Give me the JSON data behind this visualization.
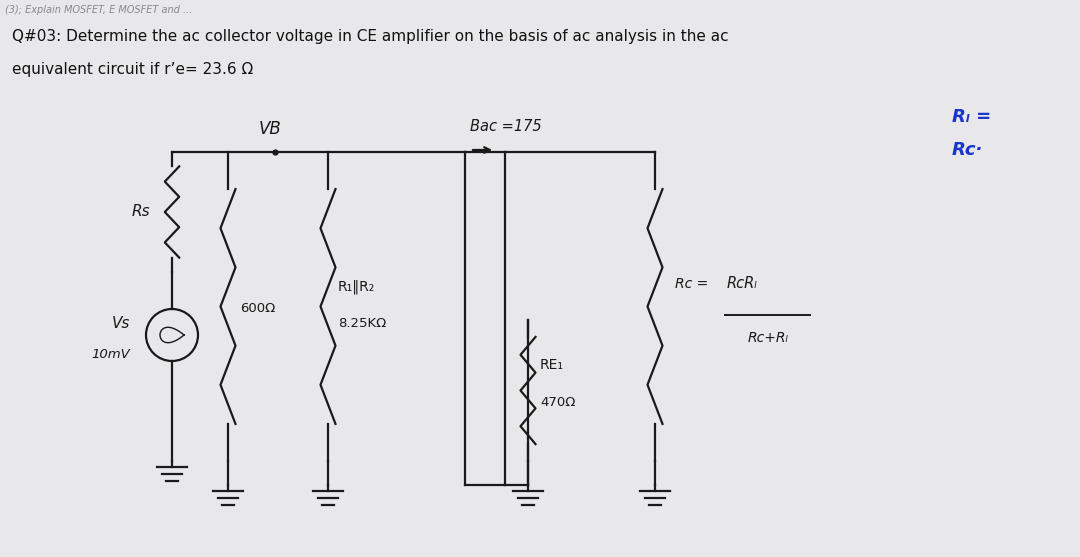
{
  "background_color": "#e8e8ea",
  "paper_color": "#f0f0f0",
  "top_text": "(3); Explain MOSFET, E MOSFET and ...",
  "q_line1": "Q#03: Determine the ac collector voltage in CE amplifier on the basis of ac analysis in the ac",
  "q_line2": "equivalent circuit if rʼe= 23.6 Ω",
  "label_VB": "VB",
  "label_Bac": "Bac =175",
  "label_Rs": "Rs",
  "label_600": "600Ω",
  "label_R1R2_top": "R₁‖R₂",
  "label_8k25": "8.25KΩ",
  "label_RE1": "RE₁",
  "label_470": "470Ω",
  "label_Vs": "Vs",
  "label_10mv": "10mV",
  "label_Rc_eq_num": "RcRₗ",
  "label_Rc_eq_lhs": "Rc =",
  "label_Rc_den": "Rc+Rₗ",
  "label_RL1": "Rₗ =",
  "label_RL2": "Rc·",
  "circuit_color": "#1a1a1a",
  "blue_color": "#1a35cc",
  "figsize": [
    10.8,
    5.57
  ],
  "dpi": 100
}
